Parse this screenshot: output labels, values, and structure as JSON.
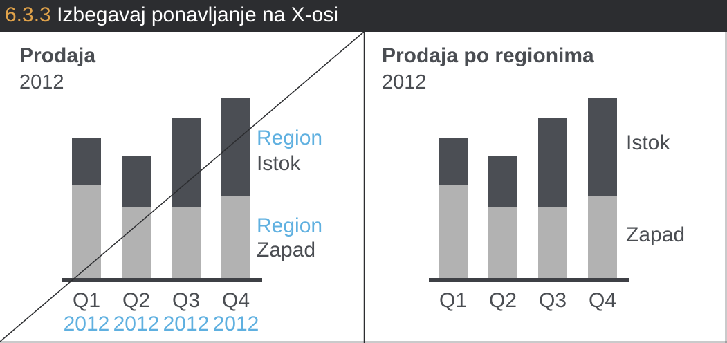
{
  "header": {
    "number": "6.3.3",
    "title": "Izbegavaj ponavljanje na X-osi"
  },
  "colors": {
    "header_bg": "#2c2d30",
    "accent_number": "#e0a24a",
    "year_blue": "#5fb0e0",
    "istok": "#4b4e54",
    "zapad": "#b2b2b2",
    "text": "#4a4d52"
  },
  "chart_data": [
    {
      "type": "bar",
      "stacked": true,
      "title": "Prodaja",
      "subtitle": "2012",
      "categories": [
        "Q1",
        "Q2",
        "Q3",
        "Q4"
      ],
      "category_sublabels": [
        "2012",
        "2012",
        "2012",
        "2012"
      ],
      "series": [
        {
          "name": "Zapad",
          "label_prefix": "Region",
          "values": [
            134,
            103,
            103,
            118
          ]
        },
        {
          "name": "Istok",
          "label_prefix": "Region",
          "values": [
            69,
            74,
            129,
            143
          ]
        }
      ],
      "ylim": [
        0,
        270
      ],
      "grid": false,
      "xlabel": "",
      "ylabel": "",
      "legend": "right, inline labels",
      "crossed_out": true
    },
    {
      "type": "bar",
      "stacked": true,
      "title": "Prodaja po regionima",
      "subtitle": "2012",
      "categories": [
        "Q1",
        "Q2",
        "Q3",
        "Q4"
      ],
      "series": [
        {
          "name": "Zapad",
          "values": [
            134,
            103,
            103,
            118
          ]
        },
        {
          "name": "Istok",
          "values": [
            69,
            74,
            129,
            143
          ]
        }
      ],
      "ylim": [
        0,
        270
      ],
      "grid": false,
      "xlabel": "",
      "ylabel": "",
      "legend": "right, inline labels",
      "crossed_out": false
    }
  ]
}
